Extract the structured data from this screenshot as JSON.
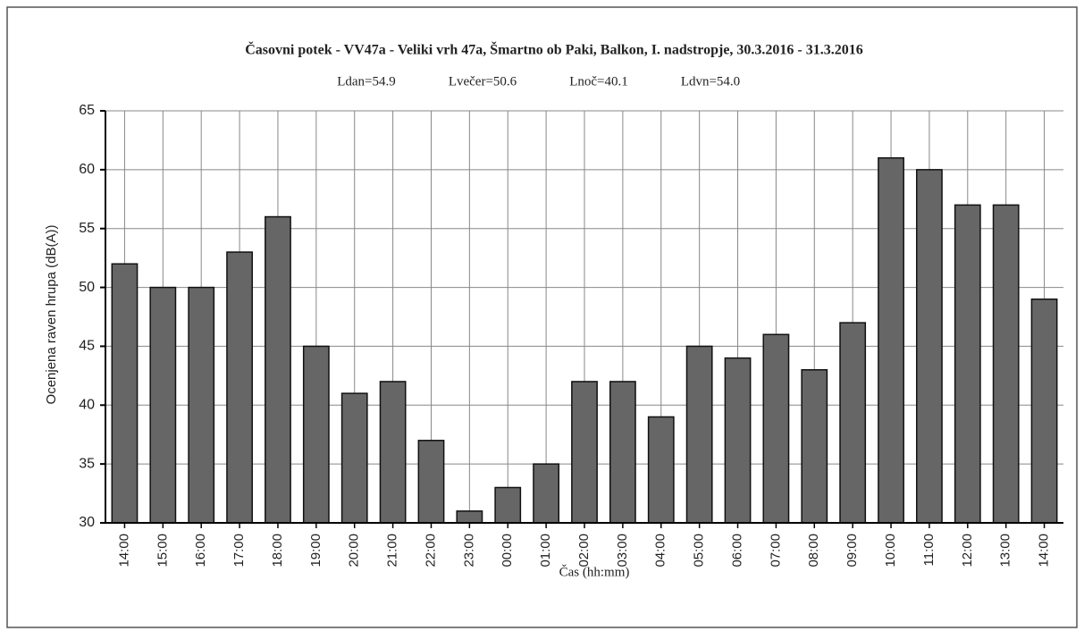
{
  "chart_data": {
    "type": "bar",
    "title": "Časovni potek - VV47a - Veliki vrh 47a, Šmartno ob Paki, Balkon, I. nadstropje, 30.3.2016 - 31.3.2016",
    "annotations": [
      "Ldan=54.9",
      "Lvečer=50.6",
      "Lnoč=40.1",
      "Ldvn=54.0"
    ],
    "xlabel": "Čas (hh:mm)",
    "ylabel": "Ocenjena raven hrupa (dB(A))",
    "categories": [
      "14:00",
      "15:00",
      "16:00",
      "17:00",
      "18:00",
      "19:00",
      "20:00",
      "21:00",
      "22:00",
      "23:00",
      "00:00",
      "01:00",
      "02:00",
      "03:00",
      "04:00",
      "05:00",
      "06:00",
      "07:00",
      "08:00",
      "09:00",
      "10:00",
      "11:00",
      "12:00",
      "13:00",
      "14:00"
    ],
    "values": [
      52,
      50,
      50,
      53,
      56,
      45,
      41,
      42,
      37,
      31,
      33,
      35,
      42,
      42,
      39,
      45,
      44,
      46,
      43,
      47,
      61,
      60,
      57,
      57,
      49
    ],
    "color": "#666666",
    "ylim": [
      30,
      65
    ],
    "yticks": [
      30,
      35,
      40,
      45,
      50,
      55,
      60,
      65
    ],
    "grid": true
  }
}
